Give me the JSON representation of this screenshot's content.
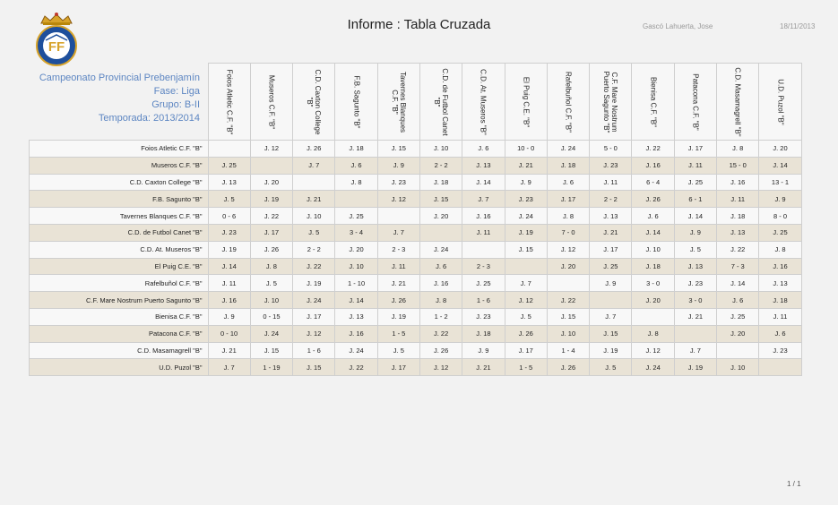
{
  "header": {
    "title": "Informe : Tabla Cruzada",
    "author": "Gascó Lahuerta, Jose",
    "date": "18/11/2013"
  },
  "info": {
    "line1": "Campeonato Provincial Prebenjamín",
    "line2": "Fase: Liga",
    "line3": "Grupo: B-II",
    "line4": "Temporada: 2013/2014"
  },
  "colors": {
    "info_text": "#5d86c2",
    "row_even": "#f8f8f8",
    "row_odd": "#e9e3d6"
  },
  "logo": {
    "icon": "federation-crest-icon"
  },
  "teams": [
    "Foios Atletic C.F. \"B\"",
    "Museros C.F. \"B\"",
    "C.D. Caxton College \"B\"",
    "F.B. Sagunto \"B\"",
    "Tavernes Blanques C.F. \"B\"",
    "C.D. de Futbol Canet \"B\"",
    "C.D. At. Museros \"B\"",
    "El Puig C.E. \"B\"",
    "Rafelbuñol C.F. \"B\"",
    "C.F. Mare Nostrum Puerto Sagunto \"B\"",
    "Bienisa C.F. \"B\"",
    "Patacona C.F. \"B\"",
    "C.D. Masamagrell \"B\"",
    "U.D. Puzol \"B\""
  ],
  "rows": [
    [
      "",
      "J. 12",
      "J. 26",
      "J. 18",
      "J. 15",
      "J. 10",
      "J. 6",
      "10 - 0",
      "J. 24",
      "5 - 0",
      "J. 22",
      "J. 17",
      "J. 8",
      "J. 20"
    ],
    [
      "J. 25",
      "",
      "J. 7",
      "J. 6",
      "J. 9",
      "2 - 2",
      "J. 13",
      "J. 21",
      "J. 18",
      "J. 23",
      "J. 16",
      "J. 11",
      "15 - 0",
      "J. 14"
    ],
    [
      "J. 13",
      "J. 20",
      "",
      "J. 8",
      "J. 23",
      "J. 18",
      "J. 14",
      "J. 9",
      "J. 6",
      "J. 11",
      "6 - 4",
      "J. 25",
      "J. 16",
      "13 - 1"
    ],
    [
      "J. 5",
      "J. 19",
      "J. 21",
      "",
      "J. 12",
      "J. 15",
      "J. 7",
      "J. 23",
      "J. 17",
      "2 - 2",
      "J. 26",
      "6 - 1",
      "J. 11",
      "J. 9"
    ],
    [
      "0 - 6",
      "J. 22",
      "J. 10",
      "J. 25",
      "",
      "J. 20",
      "J. 16",
      "J. 24",
      "J. 8",
      "J. 13",
      "J. 6",
      "J. 14",
      "J. 18",
      "8 - 0"
    ],
    [
      "J. 23",
      "J. 17",
      "J. 5",
      "3 - 4",
      "J. 7",
      "",
      "J. 11",
      "J. 19",
      "7 - 0",
      "J. 21",
      "J. 14",
      "J. 9",
      "J. 13",
      "J. 25"
    ],
    [
      "J. 19",
      "J. 26",
      "2 - 2",
      "J. 20",
      "2 - 3",
      "J. 24",
      "",
      "J. 15",
      "J. 12",
      "J. 17",
      "J. 10",
      "J. 5",
      "J. 22",
      "J. 8"
    ],
    [
      "J. 14",
      "J. 8",
      "J. 22",
      "J. 10",
      "J. 11",
      "J. 6",
      "2 - 3",
      "",
      "J. 20",
      "J. 25",
      "J. 18",
      "J. 13",
      "7 - 3",
      "J. 16"
    ],
    [
      "J. 11",
      "J. 5",
      "J. 19",
      "1 - 10",
      "J. 21",
      "J. 16",
      "J. 25",
      "J. 7",
      "",
      "J. 9",
      "3 - 0",
      "J. 23",
      "J. 14",
      "J. 13"
    ],
    [
      "J. 16",
      "J. 10",
      "J. 24",
      "J. 14",
      "J. 26",
      "J. 8",
      "1 - 6",
      "J. 12",
      "J. 22",
      "",
      "J. 20",
      "3 - 0",
      "J. 6",
      "J. 18"
    ],
    [
      "J. 9",
      "0 - 15",
      "J. 17",
      "J. 13",
      "J. 19",
      "1 - 2",
      "J. 23",
      "J. 5",
      "J. 15",
      "J. 7",
      "",
      "J. 21",
      "J. 25",
      "J. 11"
    ],
    [
      "0 - 10",
      "J. 24",
      "J. 12",
      "J. 16",
      "1 - 5",
      "J. 22",
      "J. 18",
      "J. 26",
      "J. 10",
      "J. 15",
      "J. 8",
      "",
      "J. 20",
      "J. 6"
    ],
    [
      "J. 21",
      "J. 15",
      "1 - 6",
      "J. 24",
      "J. 5",
      "J. 26",
      "J. 9",
      "J. 17",
      "1 - 4",
      "J. 19",
      "J. 12",
      "J. 7",
      "",
      "J. 23"
    ],
    [
      "J. 7",
      "1 - 19",
      "J. 15",
      "J. 22",
      "J. 17",
      "J. 12",
      "J. 21",
      "1 - 5",
      "J. 26",
      "J. 5",
      "J. 24",
      "J. 19",
      "J. 10",
      ""
    ]
  ],
  "footer": {
    "page": "1 / 1"
  }
}
